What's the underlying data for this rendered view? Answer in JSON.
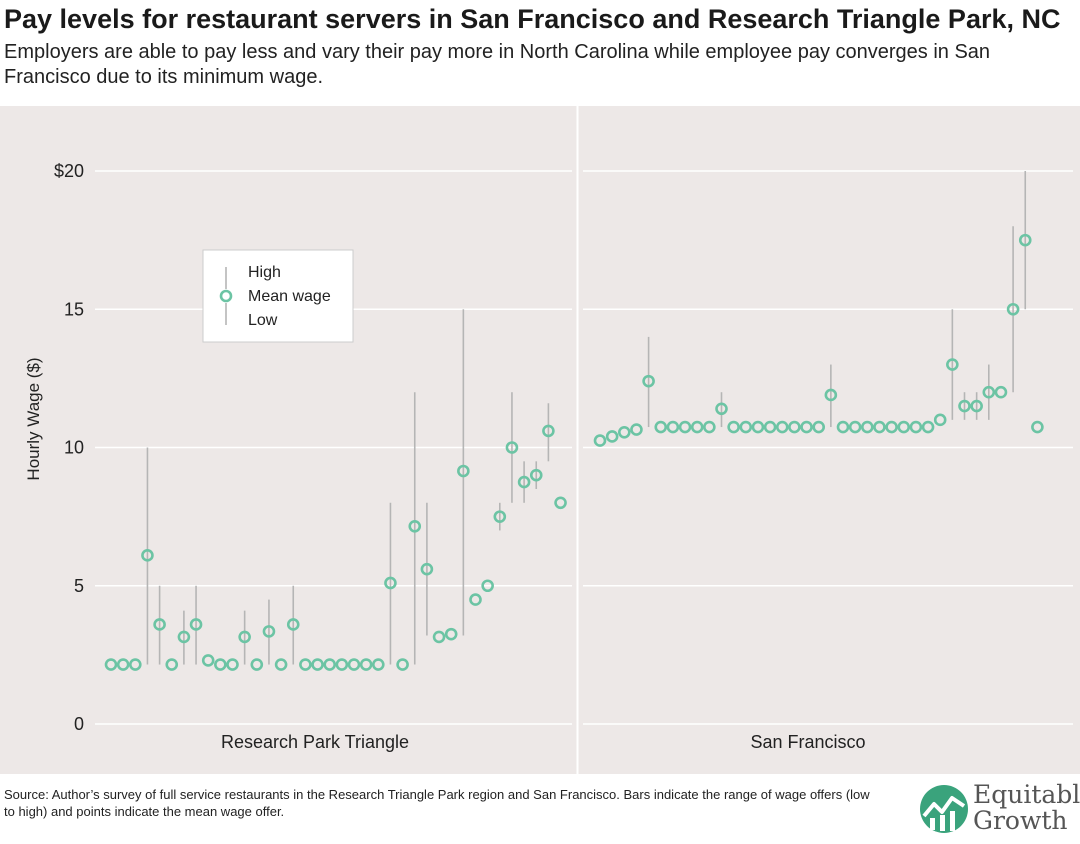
{
  "header": {
    "title": "Pay levels for restaurant servers in San Francisco and Research Triangle Park, NC",
    "subtitle": "Employers are able to pay less and vary their pay more in North Carolina while employee pay converges in San Francisco due to its minimum wage."
  },
  "footer": {
    "source": "Source: Author’s survey of full service restaurants in the Research Triangle Park region and San Francisco. Bars indicate the range of wage offers (low to high) and points indicate the mean wage offer.",
    "logo_line1": "Equitable",
    "logo_line2": "Growth"
  },
  "chart_data": {
    "type": "scatter",
    "ylabel": "Hourly Wage ($)",
    "ylim": [
      0,
      20
    ],
    "yticks": [
      "0",
      "5",
      "10",
      "15",
      "$20"
    ],
    "grid": true,
    "legend": {
      "placement": "upper-left",
      "entries": [
        "High",
        "Mean wage",
        "Low"
      ]
    },
    "colors": {
      "point": "#6cc4a4",
      "range": "#b5b5b5",
      "panel": "#ede8e7",
      "grid": "#ffffff"
    },
    "panels": [
      {
        "label": "Research Park Triangle",
        "points": [
          {
            "mean": 2.15
          },
          {
            "mean": 2.15
          },
          {
            "mean": 2.15
          },
          {
            "mean": 6.1,
            "low": 2.15,
            "high": 10
          },
          {
            "mean": 3.6,
            "low": 2.15,
            "high": 5
          },
          {
            "mean": 2.15
          },
          {
            "mean": 3.15,
            "low": 2.15,
            "high": 4.1
          },
          {
            "mean": 3.6,
            "low": 2.15,
            "high": 5
          },
          {
            "mean": 2.3
          },
          {
            "mean": 2.15
          },
          {
            "mean": 2.15
          },
          {
            "mean": 3.15,
            "low": 2.15,
            "high": 4.1
          },
          {
            "mean": 2.15
          },
          {
            "mean": 3.35,
            "low": 2.15,
            "high": 4.5
          },
          {
            "mean": 2.15
          },
          {
            "mean": 3.6,
            "low": 2.15,
            "high": 5
          },
          {
            "mean": 2.15
          },
          {
            "mean": 2.15
          },
          {
            "mean": 2.15
          },
          {
            "mean": 2.15
          },
          {
            "mean": 2.15
          },
          {
            "mean": 2.15
          },
          {
            "mean": 2.15
          },
          {
            "mean": 5.1,
            "low": 2.15,
            "high": 8
          },
          {
            "mean": 2.15
          },
          {
            "mean": 7.15,
            "low": 2.15,
            "high": 12
          },
          {
            "mean": 5.6,
            "low": 3.2,
            "high": 8
          },
          {
            "mean": 3.15
          },
          {
            "mean": 3.25
          },
          {
            "mean": 9.15,
            "low": 3.2,
            "high": 15
          },
          {
            "mean": 4.5
          },
          {
            "mean": 5.0
          },
          {
            "mean": 7.5,
            "low": 7,
            "high": 8
          },
          {
            "mean": 10.0,
            "low": 8,
            "high": 12
          },
          {
            "mean": 8.75,
            "low": 8,
            "high": 9.5
          },
          {
            "mean": 9.0,
            "low": 8.5,
            "high": 9.5
          },
          {
            "mean": 10.6,
            "low": 9.5,
            "high": 11.6
          },
          {
            "mean": 8.0
          }
        ]
      },
      {
        "label": "San Francisco",
        "points": [
          {
            "mean": 10.25
          },
          {
            "mean": 10.4
          },
          {
            "mean": 10.55
          },
          {
            "mean": 10.65
          },
          {
            "mean": 12.4,
            "low": 10.74,
            "high": 14
          },
          {
            "mean": 10.74
          },
          {
            "mean": 10.74
          },
          {
            "mean": 10.74
          },
          {
            "mean": 10.74
          },
          {
            "mean": 10.74
          },
          {
            "mean": 11.4,
            "low": 10.74,
            "high": 12
          },
          {
            "mean": 10.74
          },
          {
            "mean": 10.74
          },
          {
            "mean": 10.74
          },
          {
            "mean": 10.74
          },
          {
            "mean": 10.74
          },
          {
            "mean": 10.74
          },
          {
            "mean": 10.74
          },
          {
            "mean": 10.74
          },
          {
            "mean": 11.9,
            "low": 10.74,
            "high": 13
          },
          {
            "mean": 10.74
          },
          {
            "mean": 10.74
          },
          {
            "mean": 10.74
          },
          {
            "mean": 10.74
          },
          {
            "mean": 10.74
          },
          {
            "mean": 10.74
          },
          {
            "mean": 10.74
          },
          {
            "mean": 10.74
          },
          {
            "mean": 11.0
          },
          {
            "mean": 13.0,
            "low": 11,
            "high": 15
          },
          {
            "mean": 11.5,
            "low": 11,
            "high": 12
          },
          {
            "mean": 11.5,
            "low": 11,
            "high": 12
          },
          {
            "mean": 12.0,
            "low": 11,
            "high": 13
          },
          {
            "mean": 12.0
          },
          {
            "mean": 15.0,
            "low": 12,
            "high": 18
          },
          {
            "mean": 17.5,
            "low": 15,
            "high": 20
          },
          {
            "mean": 10.74
          }
        ]
      }
    ]
  }
}
